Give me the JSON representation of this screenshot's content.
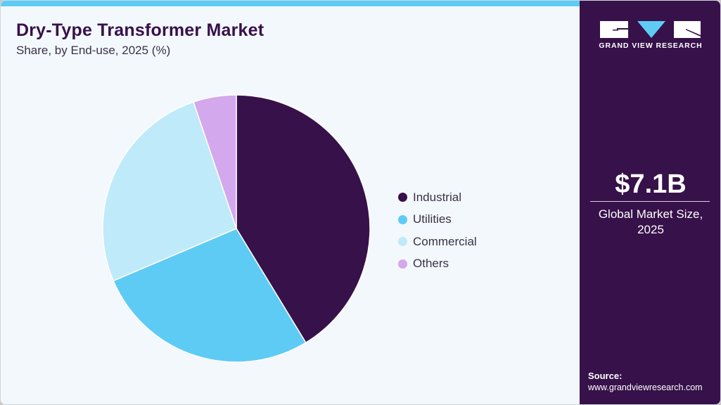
{
  "header": {
    "title": "Dry-Type Transformer Market",
    "subtitle": "Share, by End-use, 2025 (%)"
  },
  "colors": {
    "accent_bar": "#5ecbf5",
    "brand_purple": "#37114a",
    "background": "#f3f8fc"
  },
  "legend": {
    "items": [
      {
        "label": "Industrial",
        "color": "#37114a"
      },
      {
        "label": "Utilities",
        "color": "#5ecbf5"
      },
      {
        "label": "Commercial",
        "color": "#bfeaf9"
      },
      {
        "label": "Others",
        "color": "#d4a8ec"
      }
    ]
  },
  "sidebar": {
    "brand": "GRAND VIEW RESEARCH",
    "market_size_value": "$7.1B",
    "market_size_label_line1": "Global Market Size,",
    "market_size_label_line2": "2025",
    "source_title": "Source:",
    "source_url": "www.grandviewresearch.com"
  },
  "chart_data": {
    "type": "pie",
    "title": "Dry-Type Transformer Market",
    "subtitle": "Share, by End-use, 2025 (%)",
    "categories": [
      "Industrial",
      "Utilities",
      "Commercial",
      "Others"
    ],
    "values": [
      41.3,
      27.3,
      26.2,
      5.2
    ],
    "colors": [
      "#37114a",
      "#5ecbf5",
      "#bfeaf9",
      "#d4a8ec"
    ],
    "start_angle": "12 o'clock, clockwise",
    "legend_position": "right",
    "data_labels": false
  }
}
